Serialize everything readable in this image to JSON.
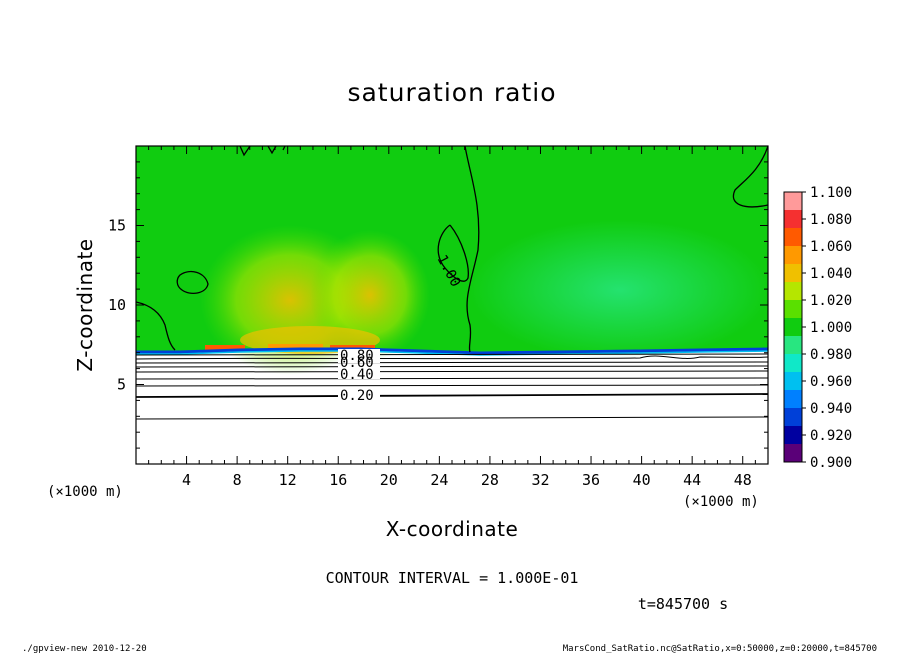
{
  "chart_data": {
    "type": "heatmap",
    "title": "saturation ratio",
    "xlabel": "X-coordinate",
    "ylabel": "Z-coordinate",
    "xunit": "(×1000 m)",
    "yunit": "(×1000 m)",
    "xlim": [
      0,
      50
    ],
    "ylim": [
      0,
      20
    ],
    "xticks": [
      "4",
      "8",
      "12",
      "16",
      "20",
      "24",
      "28",
      "32",
      "36",
      "40",
      "44",
      "48"
    ],
    "yticks": [
      "5",
      "10",
      "15"
    ],
    "colorbar": {
      "levels": [
        "1.100",
        "1.080",
        "1.060",
        "1.040",
        "1.020",
        "1.000",
        "0.980",
        "0.960",
        "0.940",
        "0.920",
        "0.900"
      ],
      "colors": [
        "#ff9a9a",
        "#f53030",
        "#ff5a00",
        "#ff9900",
        "#f0c000",
        "#b5e600",
        "#5ae000",
        "#10cc10",
        "#28e680",
        "#10e8c8",
        "#00c0f0",
        "#0080ff",
        "#0040d8",
        "#0000a0",
        "#5a0078"
      ]
    },
    "contour_labels": [
      "1.00",
      "0.80",
      "0.60",
      "0.40",
      "0.20"
    ],
    "contour_interval_text": "CONTOUR INTERVAL = 1.000E-01",
    "time_text": "t=845700 s",
    "footer_left": "./gpview-new   2010-12-20",
    "footer_right": "MarsCond_SatRatio.nc@SatRatio,x=0:50000,z=0:20000,t=845700"
  }
}
